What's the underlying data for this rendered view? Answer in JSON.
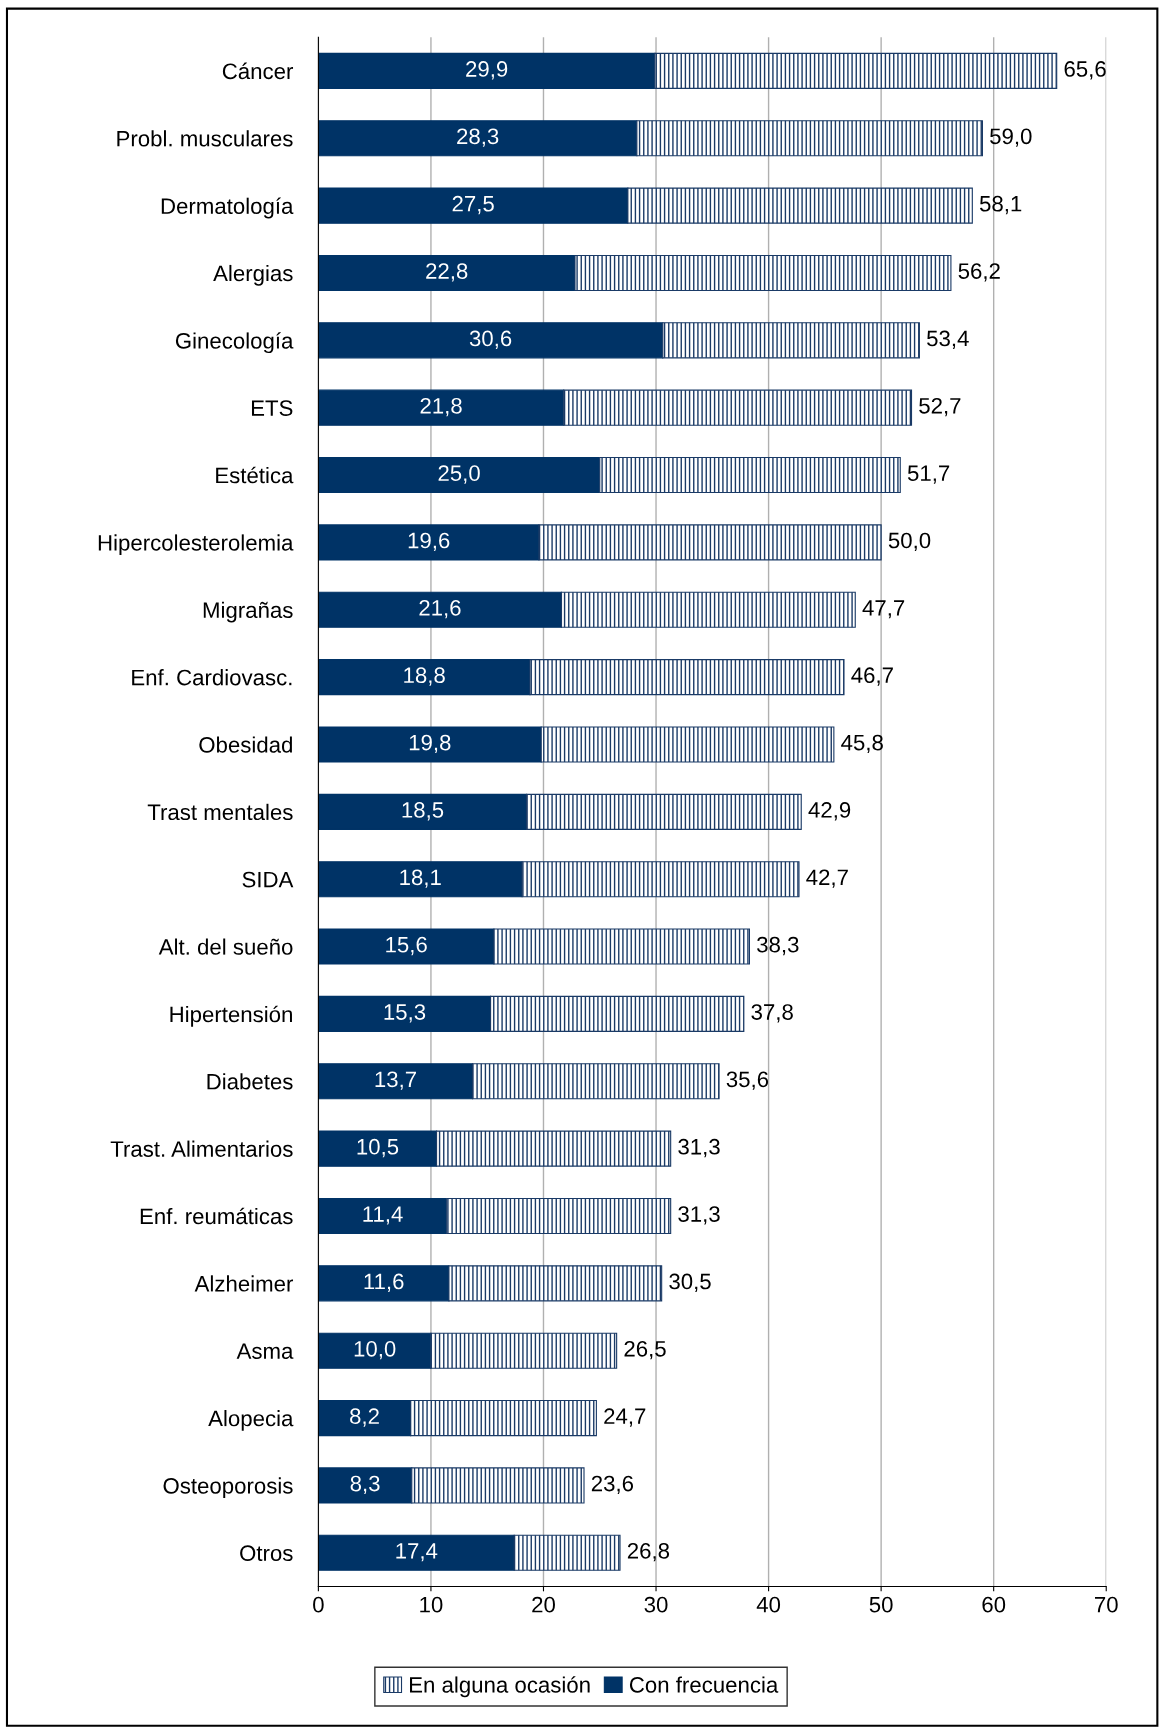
{
  "chart_data": {
    "type": "bar",
    "orientation": "horizontal",
    "stacked": true,
    "categories": [
      "Cáncer",
      "Probl. musculares",
      "Dermatología",
      "Alergias",
      "Ginecología",
      "ETS",
      "Estética",
      "Hipercolesterolemia",
      "Migrañas",
      "Enf. Cardiovasc.",
      "Obesidad",
      "Trast mentales",
      "SIDA",
      "Alt. del sueño",
      "Hipertensión",
      "Diabetes",
      "Trast. Alimentarios",
      "Enf. reumáticas",
      "Alzheimer",
      "Asma",
      "Alopecia",
      "Osteoporosis",
      "Otros"
    ],
    "series": [
      {
        "name": "Con frecuencia",
        "color": "#003366",
        "values": [
          29.9,
          28.3,
          27.5,
          22.8,
          30.6,
          21.8,
          25.0,
          19.6,
          21.6,
          18.8,
          19.8,
          18.5,
          18.1,
          15.6,
          15.3,
          13.7,
          10.5,
          11.4,
          11.6,
          10.0,
          8.2,
          8.3,
          17.4
        ],
        "value_labels": [
          "29,9",
          "28,3",
          "27,5",
          "22,8",
          "30,6",
          "21,8",
          "25,0",
          "19,6",
          "21,6",
          "18,8",
          "19,8",
          "18,5",
          "18,1",
          "15,6",
          "15,3",
          "13,7",
          "10,5",
          "11,4",
          "11,6",
          "10,0",
          "8,2",
          "8,3",
          "17,4"
        ]
      },
      {
        "name": "En alguna ocasión",
        "color": "#1a3a66",
        "values": [
          35.7,
          30.7,
          30.6,
          33.4,
          22.8,
          30.9,
          26.7,
          30.4,
          26.1,
          27.9,
          26.0,
          24.4,
          24.6,
          22.7,
          22.5,
          21.9,
          20.8,
          19.9,
          18.9,
          16.5,
          16.5,
          15.3,
          9.4
        ]
      }
    ],
    "totals": [
      "65,6",
      "59,0",
      "58,1",
      "56,2",
      "53,4",
      "52,7",
      "51,7",
      "50,0",
      "47,7",
      "46,7",
      "45,8",
      "42,9",
      "42,7",
      "38,3",
      "37,8",
      "35,6",
      "31,3",
      "31,3",
      "30,5",
      "26,5",
      "24,7",
      "23,6",
      "26,8"
    ],
    "xlim": [
      0,
      70
    ],
    "xticks": [
      0,
      10,
      20,
      30,
      40,
      50,
      60,
      70
    ],
    "grid": "x",
    "legend": "bottom"
  }
}
